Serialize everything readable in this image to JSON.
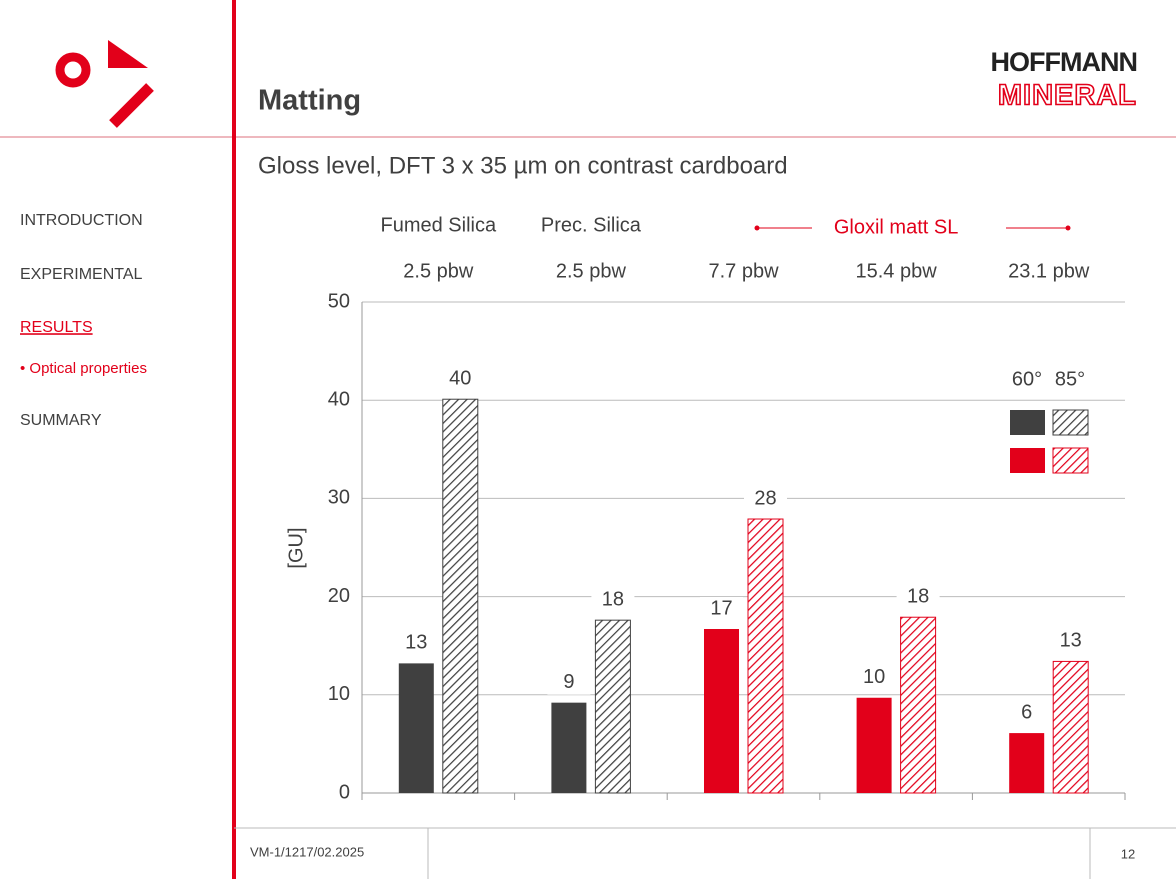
{
  "header": {
    "title": "Matting",
    "logo_top": "HOFFMANN",
    "logo_bottom": "MINERAL"
  },
  "nav": {
    "items": [
      "INTRODUCTION",
      "EXPERIMENTAL",
      "RESULTS",
      "• Optical properties",
      "SUMMARY"
    ]
  },
  "footer": {
    "code": "VM-1/1217/02.2025",
    "page": "12"
  },
  "chart_data": {
    "type": "bar",
    "title": "Gloss level, DFT 3 x 35 µm on contrast cardboard",
    "group_labels": [
      "Fumed Silica",
      "Prec. Silica",
      "Gloxil matt SL"
    ],
    "categories": [
      "2.5 pbw",
      "2.5 pbw",
      "7.7 pbw",
      "15.4 pbw",
      "23.1 pbw"
    ],
    "ylabel": "[GU]",
    "ylim": [
      0,
      50
    ],
    "yticks": [
      0,
      10,
      20,
      30,
      40,
      50
    ],
    "grid": true,
    "series": [
      {
        "name": "60°",
        "hatched": false,
        "colors": [
          "#404040",
          "#404040",
          "#e2001a",
          "#e2001a",
          "#e2001a"
        ],
        "values": [
          13.2,
          9.2,
          16.7,
          9.7,
          6.1
        ],
        "value_labels": [
          "13",
          "9",
          "17",
          "10",
          "6"
        ]
      },
      {
        "name": "85°",
        "hatched": true,
        "colors": [
          "#404040",
          "#404040",
          "#e2001a",
          "#e2001a",
          "#e2001a"
        ],
        "values": [
          40.1,
          17.6,
          27.9,
          17.9,
          13.4
        ],
        "value_labels": [
          "40",
          "18",
          "28",
          "18",
          "13"
        ]
      }
    ]
  }
}
